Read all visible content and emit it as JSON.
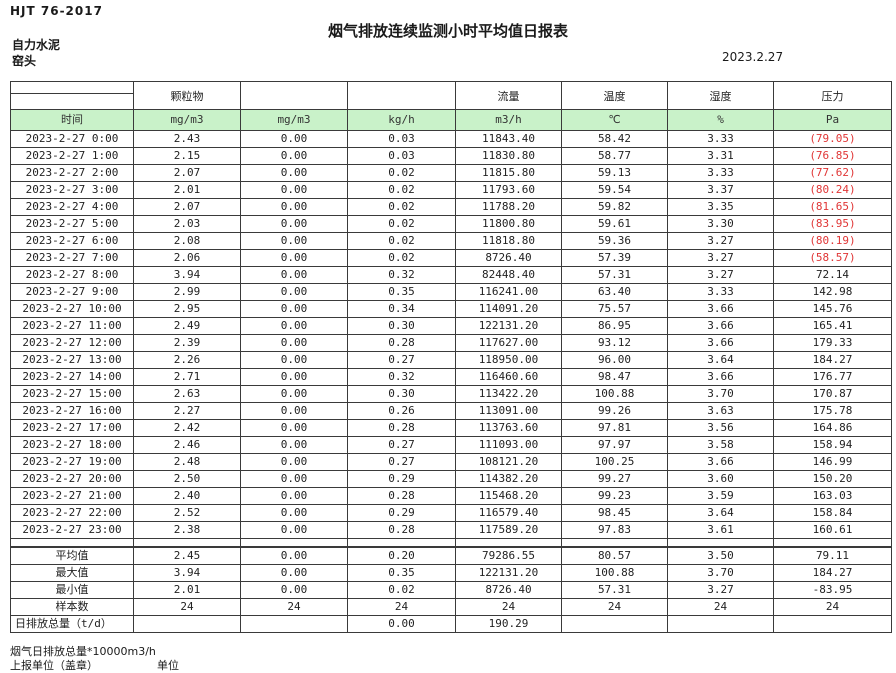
{
  "page": {
    "doc_code": "HJT  76-2017",
    "title": "烟气排放连续监测小时平均值日报表",
    "company": "自力水泥",
    "station": "窑头",
    "date": "2023.2.27"
  },
  "colors": {
    "header_green": "#c9f2c9",
    "negative_red": "#e03636"
  },
  "table": {
    "group_headers": [
      "颗粒物",
      "",
      "",
      "流量",
      "温度",
      "湿度",
      "压力"
    ],
    "units": [
      "时间",
      "mg/m3",
      "mg/m3",
      "kg/h",
      "m3/h",
      "℃",
      "%",
      "Pa"
    ],
    "rows": [
      {
        "time": "2023-2-27 0:00",
        "values": [
          "2.43",
          "0.00",
          "0.03",
          "11843.40",
          "58.42",
          "3.33",
          "(79.05)"
        ]
      },
      {
        "time": "2023-2-27 1:00",
        "values": [
          "2.15",
          "0.00",
          "0.03",
          "11830.80",
          "58.77",
          "3.31",
          "(76.85)"
        ]
      },
      {
        "time": "2023-2-27 2:00",
        "values": [
          "2.07",
          "0.00",
          "0.02",
          "11815.80",
          "59.13",
          "3.33",
          "(77.62)"
        ]
      },
      {
        "time": "2023-2-27 3:00",
        "values": [
          "2.01",
          "0.00",
          "0.02",
          "11793.60",
          "59.54",
          "3.37",
          "(80.24)"
        ]
      },
      {
        "time": "2023-2-27 4:00",
        "values": [
          "2.07",
          "0.00",
          "0.02",
          "11788.20",
          "59.82",
          "3.35",
          "(81.65)"
        ]
      },
      {
        "time": "2023-2-27 5:00",
        "values": [
          "2.03",
          "0.00",
          "0.02",
          "11800.80",
          "59.61",
          "3.30",
          "(83.95)"
        ]
      },
      {
        "time": "2023-2-27 6:00",
        "values": [
          "2.08",
          "0.00",
          "0.02",
          "11818.80",
          "59.36",
          "3.27",
          "(80.19)"
        ]
      },
      {
        "time": "2023-2-27 7:00",
        "values": [
          "2.06",
          "0.00",
          "0.02",
          "8726.40",
          "57.39",
          "3.27",
          "(58.57)"
        ]
      },
      {
        "time": "2023-2-27 8:00",
        "values": [
          "3.94",
          "0.00",
          "0.32",
          "82448.40",
          "57.31",
          "3.27",
          "72.14"
        ]
      },
      {
        "time": "2023-2-27 9:00",
        "values": [
          "2.99",
          "0.00",
          "0.35",
          "116241.00",
          "63.40",
          "3.33",
          "142.98"
        ]
      },
      {
        "time": "2023-2-27 10:00",
        "values": [
          "2.95",
          "0.00",
          "0.34",
          "114091.20",
          "75.57",
          "3.66",
          "145.76"
        ]
      },
      {
        "time": "2023-2-27 11:00",
        "values": [
          "2.49",
          "0.00",
          "0.30",
          "122131.20",
          "86.95",
          "3.66",
          "165.41"
        ]
      },
      {
        "time": "2023-2-27 12:00",
        "values": [
          "2.39",
          "0.00",
          "0.28",
          "117627.00",
          "93.12",
          "3.66",
          "179.33"
        ]
      },
      {
        "time": "2023-2-27 13:00",
        "values": [
          "2.26",
          "0.00",
          "0.27",
          "118950.00",
          "96.00",
          "3.64",
          "184.27"
        ]
      },
      {
        "time": "2023-2-27 14:00",
        "values": [
          "2.71",
          "0.00",
          "0.32",
          "116460.60",
          "98.47",
          "3.66",
          "176.77"
        ]
      },
      {
        "time": "2023-2-27 15:00",
        "values": [
          "2.63",
          "0.00",
          "0.30",
          "113422.20",
          "100.88",
          "3.70",
          "170.87"
        ]
      },
      {
        "time": "2023-2-27 16:00",
        "values": [
          "2.27",
          "0.00",
          "0.26",
          "113091.00",
          "99.26",
          "3.63",
          "175.78"
        ]
      },
      {
        "time": "2023-2-27 17:00",
        "values": [
          "2.42",
          "0.00",
          "0.28",
          "113763.60",
          "97.81",
          "3.56",
          "164.86"
        ]
      },
      {
        "time": "2023-2-27 18:00",
        "values": [
          "2.46",
          "0.00",
          "0.27",
          "111093.00",
          "97.97",
          "3.58",
          "158.94"
        ]
      },
      {
        "time": "2023-2-27 19:00",
        "values": [
          "2.48",
          "0.00",
          "0.27",
          "108121.20",
          "100.25",
          "3.66",
          "146.99"
        ]
      },
      {
        "time": "2023-2-27 20:00",
        "values": [
          "2.50",
          "0.00",
          "0.29",
          "114382.20",
          "99.27",
          "3.60",
          "150.20"
        ]
      },
      {
        "time": "2023-2-27 21:00",
        "values": [
          "2.40",
          "0.00",
          "0.28",
          "115468.20",
          "99.23",
          "3.59",
          "163.03"
        ]
      },
      {
        "time": "2023-2-27 22:00",
        "values": [
          "2.52",
          "0.00",
          "0.29",
          "116579.40",
          "98.45",
          "3.64",
          "158.84"
        ]
      },
      {
        "time": "2023-2-27 23:00",
        "values": [
          "2.38",
          "0.00",
          "0.28",
          "117589.20",
          "97.83",
          "3.61",
          "160.61"
        ]
      }
    ],
    "summary": [
      {
        "label": "平均值",
        "left": false,
        "values": [
          "2.45",
          "0.00",
          "0.20",
          "79286.55",
          "80.57",
          "3.50",
          "79.11"
        ]
      },
      {
        "label": "最大值",
        "left": false,
        "values": [
          "3.94",
          "0.00",
          "0.35",
          "122131.20",
          "100.88",
          "3.70",
          "184.27"
        ]
      },
      {
        "label": "最小值",
        "left": false,
        "values": [
          "2.01",
          "0.00",
          "0.02",
          "8726.40",
          "57.31",
          "3.27",
          "-83.95"
        ]
      },
      {
        "label": "样本数",
        "left": false,
        "values": [
          "24",
          "24",
          "24",
          "24",
          "24",
          "24",
          "24"
        ]
      },
      {
        "label": "日排放总量（t/d）",
        "left": true,
        "values": [
          "",
          "",
          "0.00",
          "190.29",
          "",
          "",
          ""
        ]
      }
    ]
  },
  "footer": {
    "note": "烟气日排放总量*10000m3/h",
    "report_unit": "上报单位（盖章）",
    "unit_label": "单位"
  }
}
